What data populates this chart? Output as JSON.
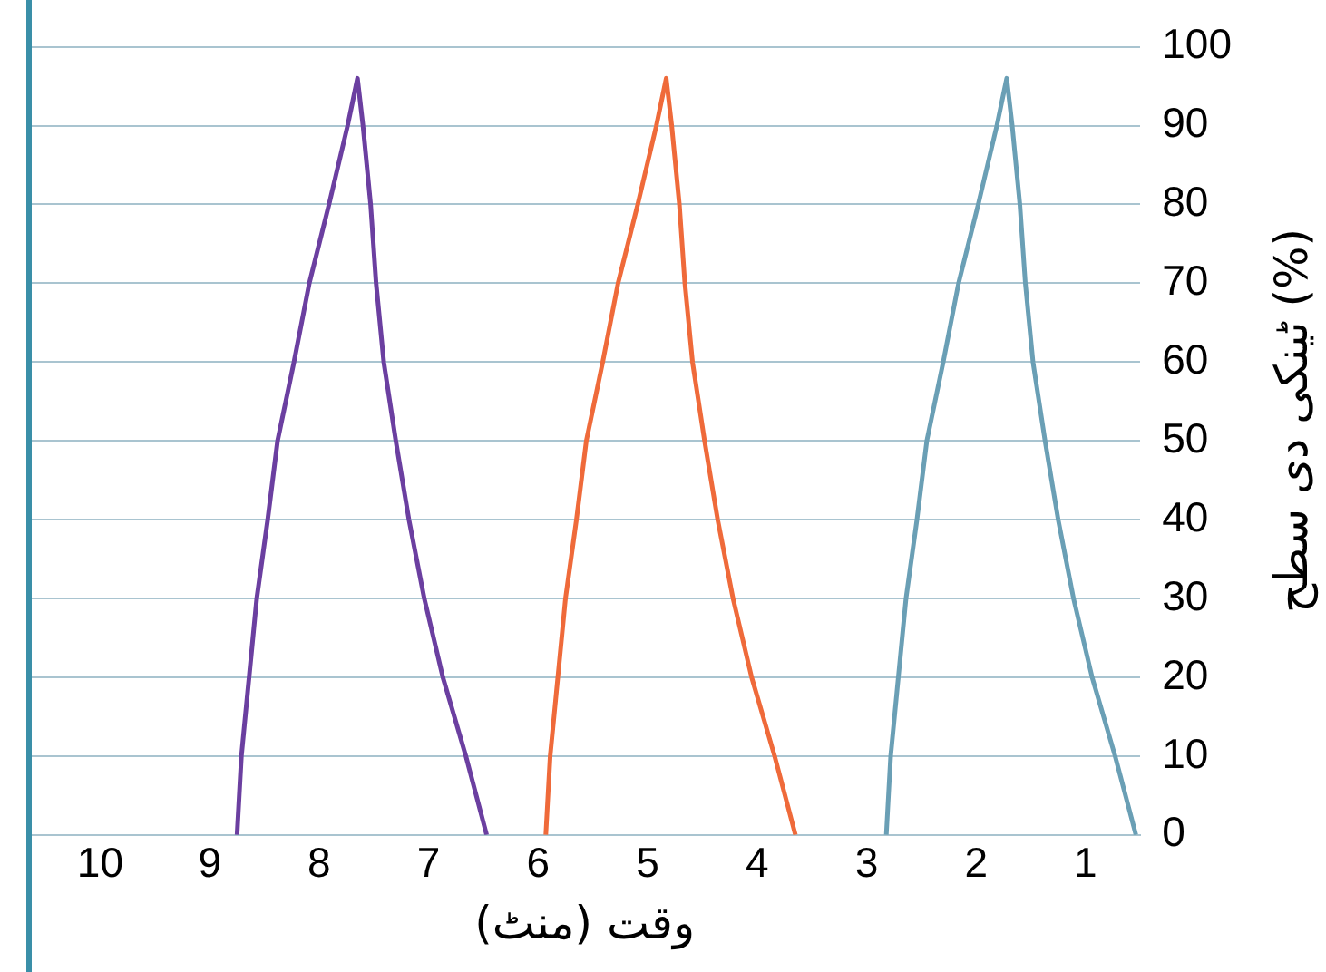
{
  "chart_data": {
    "type": "line",
    "xlabel": "وقت (منٹ)",
    "ylabel": "ٹینکی دی سطح (%)",
    "xlim": [
      10.65,
      0.5
    ],
    "xticks": [
      10,
      9,
      8,
      7,
      6,
      5,
      4,
      3,
      2,
      1
    ],
    "ylim": [
      0,
      100
    ],
    "yticks": [
      0,
      10,
      20,
      30,
      40,
      50,
      60,
      70,
      80,
      90,
      100
    ],
    "grid": "y",
    "legend": false,
    "ref_lines": [
      {
        "axis": "x",
        "value": 10.65,
        "color": "#3a8fa8"
      }
    ],
    "marker": "none",
    "series": [
      {
        "color": "#6b3fa0",
        "x": [
          8.75,
          8.71,
          8.64,
          8.57,
          8.47,
          8.38,
          8.23,
          8.09,
          7.91,
          7.74,
          7.65,
          7.6,
          7.53,
          7.48,
          7.41,
          7.3,
          7.18,
          7.04,
          6.87,
          6.66,
          6.47
        ],
        "values": [
          0,
          10,
          20,
          30,
          40,
          50,
          60,
          70,
          80,
          90,
          96,
          90,
          80,
          70,
          60,
          50,
          40,
          30,
          20,
          10,
          0
        ]
      },
      {
        "color": "#ef6a3a",
        "x": [
          5.93,
          5.89,
          5.82,
          5.75,
          5.65,
          5.56,
          5.41,
          5.27,
          5.09,
          4.92,
          4.83,
          4.78,
          4.71,
          4.66,
          4.59,
          4.48,
          4.36,
          4.22,
          4.05,
          3.84,
          3.65
        ],
        "values": [
          0,
          10,
          20,
          30,
          40,
          50,
          60,
          70,
          80,
          90,
          96,
          90,
          80,
          70,
          60,
          50,
          40,
          30,
          20,
          10,
          0
        ]
      },
      {
        "color": "#6a9fb5",
        "x": [
          2.82,
          2.78,
          2.71,
          2.64,
          2.54,
          2.45,
          2.3,
          2.16,
          1.98,
          1.81,
          1.72,
          1.67,
          1.6,
          1.55,
          1.48,
          1.37,
          1.25,
          1.11,
          0.94,
          0.73,
          0.54
        ],
        "values": [
          0,
          10,
          20,
          30,
          40,
          50,
          60,
          70,
          80,
          90,
          96,
          90,
          80,
          70,
          60,
          50,
          40,
          30,
          20,
          10,
          0
        ]
      }
    ]
  }
}
